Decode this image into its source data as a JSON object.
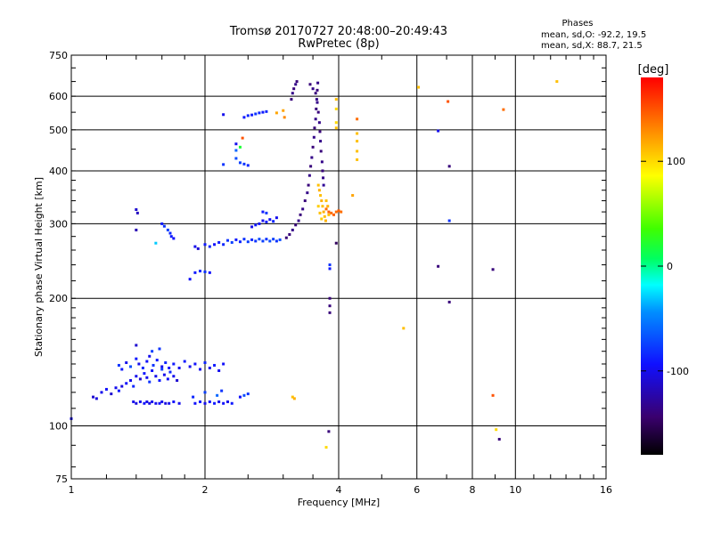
{
  "chart_data": {
    "type": "scatter",
    "title": "Tromsø 20170727 20:48:00–20:49:43",
    "subtitle": "RwPretec (8p)",
    "xlabel": "Frequency [MHz]",
    "ylabel": "Stationary phase Virtual Height [km]",
    "x_scale": "log",
    "y_scale": "log",
    "xlim": [
      1,
      16
    ],
    "ylim": [
      75,
      750
    ],
    "x_ticks": [
      1,
      2,
      4,
      6,
      8,
      10,
      16
    ],
    "y_ticks": [
      75,
      100,
      200,
      300,
      400,
      500,
      600,
      750
    ],
    "grid": true,
    "phase_info": {
      "title": "Phases",
      "line_o": "mean, sd,O: -92.2, 19.5",
      "line_x": "mean, sd,X:  88.7, 21.5"
    },
    "colorbar": {
      "label": "[deg]",
      "range": [
        -180,
        180
      ],
      "ticks": [
        100,
        0,
        -100
      ],
      "colormap": "rainbow"
    },
    "points": [
      [
        1.0,
        104,
        -100
      ],
      [
        1.12,
        117,
        -110
      ],
      [
        1.14,
        116,
        -105
      ],
      [
        1.17,
        120,
        -100
      ],
      [
        1.2,
        122,
        -95
      ],
      [
        1.23,
        119,
        -110
      ],
      [
        1.26,
        123,
        -100
      ],
      [
        1.28,
        121,
        -90
      ],
      [
        1.3,
        124,
        -105
      ],
      [
        1.33,
        126,
        -95
      ],
      [
        1.36,
        128,
        -100
      ],
      [
        1.38,
        124,
        -85
      ],
      [
        1.4,
        131,
        -100
      ],
      [
        1.43,
        129,
        -110
      ],
      [
        1.46,
        133,
        -90
      ],
      [
        1.48,
        130,
        -100
      ],
      [
        1.5,
        127,
        -80
      ],
      [
        1.52,
        135,
        -95
      ],
      [
        1.55,
        131,
        -100
      ],
      [
        1.58,
        128,
        -90
      ],
      [
        1.6,
        136,
        -75
      ],
      [
        1.62,
        132,
        -100
      ],
      [
        1.65,
        129,
        -95
      ],
      [
        1.67,
        134,
        -85
      ],
      [
        1.7,
        131,
        -100
      ],
      [
        1.73,
        128,
        -110
      ],
      [
        1.28,
        139,
        -80
      ],
      [
        1.3,
        136,
        -90
      ],
      [
        1.33,
        141,
        -100
      ],
      [
        1.36,
        138,
        -70
      ],
      [
        1.4,
        144,
        -90
      ],
      [
        1.42,
        140,
        -100
      ],
      [
        1.45,
        137,
        -85
      ],
      [
        1.48,
        142,
        -95
      ],
      [
        1.5,
        146,
        -100
      ],
      [
        1.53,
        139,
        -80
      ],
      [
        1.56,
        143,
        -90
      ],
      [
        1.6,
        138,
        -100
      ],
      [
        1.63,
        141,
        -85
      ],
      [
        1.66,
        137,
        -95
      ],
      [
        1.7,
        140,
        -90
      ],
      [
        1.75,
        137,
        -100
      ],
      [
        1.8,
        142,
        -90
      ],
      [
        1.85,
        138,
        -100
      ],
      [
        1.9,
        140,
        -95
      ],
      [
        1.95,
        136,
        -100
      ],
      [
        2.0,
        141,
        -85
      ],
      [
        2.05,
        137,
        -100
      ],
      [
        2.1,
        139,
        -90
      ],
      [
        2.15,
        135,
        -100
      ],
      [
        2.2,
        140,
        -95
      ],
      [
        1.4,
        155,
        -110
      ],
      [
        1.52,
        150,
        -75
      ],
      [
        1.58,
        152,
        -80
      ],
      [
        1.38,
        114,
        -100
      ],
      [
        1.4,
        113,
        -105
      ],
      [
        1.43,
        114,
        -100
      ],
      [
        1.46,
        113,
        -95
      ],
      [
        1.48,
        114,
        -100
      ],
      [
        1.5,
        113,
        -105
      ],
      [
        1.52,
        114,
        -100
      ],
      [
        1.55,
        113,
        -100
      ],
      [
        1.58,
        113,
        -95
      ],
      [
        1.6,
        114,
        -100
      ],
      [
        1.63,
        113,
        -105
      ],
      [
        1.66,
        113,
        -100
      ],
      [
        1.7,
        114,
        -95
      ],
      [
        1.75,
        113,
        -100
      ],
      [
        1.9,
        113,
        -95
      ],
      [
        1.95,
        114,
        -90
      ],
      [
        2.0,
        113,
        -100
      ],
      [
        2.05,
        114,
        -95
      ],
      [
        2.1,
        113,
        -90
      ],
      [
        2.15,
        114,
        -100
      ],
      [
        2.2,
        113,
        -95
      ],
      [
        2.25,
        114,
        -100
      ],
      [
        2.3,
        113,
        -90
      ],
      [
        2.13,
        118,
        -60
      ],
      [
        2.18,
        121,
        -80
      ],
      [
        2.4,
        117,
        -95
      ],
      [
        2.45,
        118,
        -70
      ],
      [
        2.5,
        119,
        -80
      ],
      [
        1.88,
        117,
        -85
      ],
      [
        2.0,
        120,
        -75
      ],
      [
        3.15,
        117,
        110
      ],
      [
        3.18,
        116,
        115
      ],
      [
        1.4,
        324,
        -110
      ],
      [
        1.41,
        318,
        -115
      ],
      [
        1.4,
        290,
        -120
      ],
      [
        1.55,
        270,
        -30
      ],
      [
        1.6,
        300,
        -90
      ],
      [
        1.62,
        296,
        -80
      ],
      [
        1.65,
        290,
        -75
      ],
      [
        1.67,
        285,
        -85
      ],
      [
        1.68,
        280,
        -90
      ],
      [
        1.7,
        277,
        -95
      ],
      [
        1.85,
        222,
        -95
      ],
      [
        1.9,
        230,
        -90
      ],
      [
        1.95,
        232,
        -85
      ],
      [
        2.0,
        231,
        -80
      ],
      [
        2.05,
        230,
        -95
      ],
      [
        1.9,
        265,
        -100
      ],
      [
        1.93,
        262,
        -110
      ],
      [
        2.0,
        268,
        -90
      ],
      [
        2.05,
        265,
        -85
      ],
      [
        2.1,
        268,
        -95
      ],
      [
        2.15,
        271,
        -90
      ],
      [
        2.2,
        268,
        -85
      ],
      [
        2.25,
        274,
        -80
      ],
      [
        2.3,
        271,
        -75
      ],
      [
        2.35,
        275,
        -90
      ],
      [
        2.4,
        272,
        -85
      ],
      [
        2.45,
        276,
        -80
      ],
      [
        2.5,
        272,
        -75
      ],
      [
        2.55,
        275,
        -85
      ],
      [
        2.6,
        273,
        -80
      ],
      [
        2.65,
        276,
        -70
      ],
      [
        2.7,
        273,
        -75
      ],
      [
        2.75,
        276,
        -80
      ],
      [
        2.8,
        273,
        -70
      ],
      [
        2.85,
        276,
        -75
      ],
      [
        2.9,
        273,
        -80
      ],
      [
        2.95,
        275,
        -70
      ],
      [
        2.55,
        295,
        -100
      ],
      [
        2.6,
        298,
        -90
      ],
      [
        2.65,
        300,
        -95
      ],
      [
        2.7,
        305,
        -100
      ],
      [
        2.75,
        303,
        -90
      ],
      [
        2.8,
        307,
        -95
      ],
      [
        2.85,
        304,
        -85
      ],
      [
        2.9,
        310,
        -100
      ],
      [
        2.7,
        320,
        -90
      ],
      [
        2.75,
        318,
        -80
      ],
      [
        2.2,
        414,
        -80
      ],
      [
        2.35,
        428,
        -70
      ],
      [
        2.4,
        418,
        -75
      ],
      [
        2.45,
        415,
        -80
      ],
      [
        2.5,
        412,
        -85
      ],
      [
        2.2,
        543,
        -100
      ],
      [
        2.45,
        535,
        -90
      ],
      [
        2.5,
        540,
        -85
      ],
      [
        2.55,
        542,
        -90
      ],
      [
        2.6,
        545,
        -80
      ],
      [
        2.65,
        548,
        -85
      ],
      [
        2.7,
        550,
        -90
      ],
      [
        2.75,
        552,
        -85
      ],
      [
        2.35,
        447,
        -60
      ],
      [
        2.4,
        455,
        20
      ],
      [
        2.43,
        478,
        150
      ],
      [
        2.35,
        463,
        -100
      ],
      [
        2.9,
        548,
        120
      ],
      [
        3.0,
        555,
        120
      ],
      [
        3.02,
        535,
        130
      ],
      [
        3.05,
        278,
        -140
      ],
      [
        3.1,
        283,
        -140
      ],
      [
        3.15,
        290,
        -135
      ],
      [
        3.2,
        298,
        -140
      ],
      [
        3.25,
        305,
        -135
      ],
      [
        3.28,
        315,
        -140
      ],
      [
        3.32,
        325,
        -135
      ],
      [
        3.36,
        340,
        -140
      ],
      [
        3.4,
        355,
        -135
      ],
      [
        3.42,
        370,
        -140
      ],
      [
        3.44,
        390,
        -135
      ],
      [
        3.46,
        410,
        -140
      ],
      [
        3.48,
        430,
        -135
      ],
      [
        3.5,
        455,
        -140
      ],
      [
        3.52,
        480,
        -135
      ],
      [
        3.53,
        505,
        -140
      ],
      [
        3.55,
        530,
        -135
      ],
      [
        3.56,
        560,
        -140
      ],
      [
        3.57,
        590,
        -135
      ],
      [
        3.58,
        620,
        -140
      ],
      [
        3.59,
        645,
        -135
      ],
      [
        3.45,
        640,
        -140
      ],
      [
        3.5,
        625,
        -135
      ],
      [
        3.55,
        610,
        -140
      ],
      [
        3.58,
        580,
        -135
      ],
      [
        3.6,
        550,
        -140
      ],
      [
        3.62,
        520,
        -135
      ],
      [
        3.63,
        495,
        -140
      ],
      [
        3.64,
        470,
        -135
      ],
      [
        3.65,
        445,
        -140
      ],
      [
        3.67,
        420,
        -135
      ],
      [
        3.68,
        400,
        -140
      ],
      [
        3.69,
        385,
        -135
      ],
      [
        3.7,
        370,
        -130
      ],
      [
        3.13,
        590,
        -140
      ],
      [
        3.15,
        610,
        -135
      ],
      [
        3.17,
        625,
        -140
      ],
      [
        3.2,
        640,
        -135
      ],
      [
        3.22,
        650,
        -140
      ],
      [
        3.6,
        370,
        110
      ],
      [
        3.62,
        360,
        115
      ],
      [
        3.64,
        350,
        110
      ],
      [
        3.66,
        340,
        115
      ],
      [
        3.68,
        330,
        110
      ],
      [
        3.7,
        320,
        115
      ],
      [
        3.72,
        312,
        110
      ],
      [
        3.74,
        305,
        115
      ],
      [
        3.6,
        330,
        105
      ],
      [
        3.63,
        318,
        110
      ],
      [
        3.66,
        308,
        105
      ],
      [
        3.75,
        340,
        110
      ],
      [
        3.78,
        330,
        115
      ],
      [
        3.8,
        315,
        110
      ],
      [
        3.75,
        325,
        140
      ],
      [
        3.8,
        320,
        145
      ],
      [
        3.85,
        318,
        140
      ],
      [
        3.9,
        315,
        145
      ],
      [
        3.95,
        320,
        140
      ],
      [
        4.0,
        322,
        145
      ],
      [
        4.05,
        320,
        140
      ],
      [
        3.82,
        240,
        -80
      ],
      [
        3.82,
        235,
        -90
      ],
      [
        3.82,
        200,
        -140
      ],
      [
        3.82,
        192,
        -140
      ],
      [
        3.82,
        185,
        -140
      ],
      [
        3.95,
        270,
        -150
      ],
      [
        3.8,
        97,
        -140
      ],
      [
        3.75,
        89,
        100
      ],
      [
        3.95,
        590,
        110
      ],
      [
        3.95,
        560,
        100
      ],
      [
        3.95,
        520,
        100
      ],
      [
        3.95,
        505,
        110
      ],
      [
        4.3,
        350,
        120
      ],
      [
        4.4,
        530,
        140
      ],
      [
        4.4,
        490,
        110
      ],
      [
        4.4,
        470,
        110
      ],
      [
        4.4,
        445,
        110
      ],
      [
        4.4,
        425,
        110
      ],
      [
        5.6,
        170,
        110
      ],
      [
        6.05,
        630,
        110
      ],
      [
        7.05,
        583,
        150
      ],
      [
        6.7,
        497,
        -100
      ],
      [
        6.7,
        238,
        -140
      ],
      [
        7.1,
        410,
        -140
      ],
      [
        7.1,
        305,
        -80
      ],
      [
        7.1,
        196,
        -140
      ],
      [
        8.9,
        118,
        150
      ],
      [
        8.9,
        234,
        -140
      ],
      [
        9.05,
        98,
        100
      ],
      [
        9.2,
        93,
        -140
      ],
      [
        9.4,
        558,
        140
      ],
      [
        12.4,
        650,
        110
      ]
    ]
  }
}
